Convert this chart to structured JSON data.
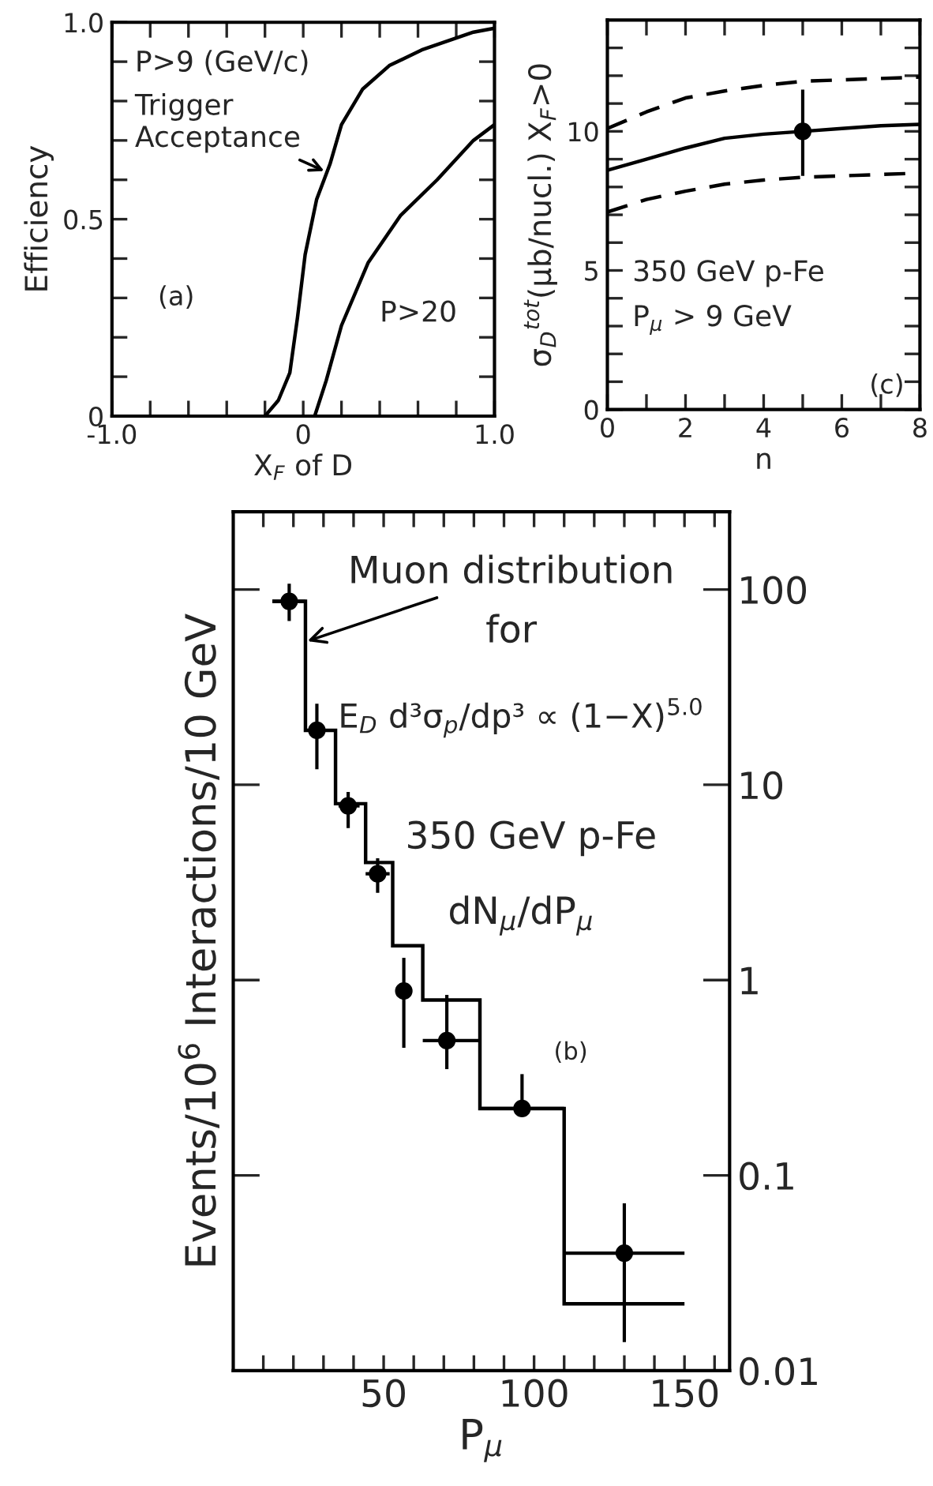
{
  "chart_data": [
    {
      "type": "line",
      "xlabel": "X$_{F}$ of D",
      "ylabel": "Efficiency",
      "xlim": [
        -1,
        1
      ],
      "ylim": [
        0,
        1
      ],
      "xticks": [
        {
          "value": -1,
          "label": "-1.0"
        },
        {
          "value": -0.8,
          "label": null
        },
        {
          "value": -0.6,
          "label": null
        },
        {
          "value": -0.4,
          "label": null
        },
        {
          "value": -0.2,
          "label": null
        },
        0,
        {
          "value": 0.2,
          "label": null
        },
        {
          "value": 0.4,
          "label": null
        },
        {
          "value": 0.6,
          "label": null
        },
        {
          "value": 0.8,
          "label": null
        },
        {
          "value": 1,
          "label": "1.0"
        }
      ],
      "yticks": [
        0,
        {
          "value": 0.1,
          "label": null
        },
        {
          "value": 0.2,
          "label": null
        },
        {
          "value": 0.3,
          "label": null
        },
        {
          "value": 0.4,
          "label": null
        },
        {
          "value": 0.5,
          "label": "0.5"
        },
        {
          "value": 0.6,
          "label": null
        },
        {
          "value": 0.7,
          "label": null
        },
        {
          "value": 0.8,
          "label": null
        },
        {
          "value": 0.9,
          "label": null
        },
        {
          "value": 1,
          "label": "1.0"
        }
      ],
      "series": [
        {
          "color": "#000000",
          "x": [
            -0.2,
            -0.13,
            -0.07,
            -0.03,
            0.01,
            0.07,
            0.14,
            0.2,
            0.31,
            0.45,
            0.62,
            0.89,
            1.0
          ],
          "values": [
            0,
            0.04,
            0.11,
            0.25,
            0.41,
            0.55,
            0.64,
            0.74,
            0.83,
            0.89,
            0.93,
            0.975,
            0.985
          ]
        },
        {
          "color": "#000000",
          "x": [
            0.06,
            0.12,
            0.2,
            0.34,
            0.51,
            0.7,
            0.89,
            1.0
          ],
          "values": [
            0,
            0.09,
            0.23,
            0.39,
            0.51,
            0.6,
            0.7,
            0.74
          ]
        }
      ],
      "annotations": [
        "P>9 (GeV/c)",
        {
          "text": "Trigger\nAcceptance",
          "x": 0.12,
          "y": 0.62
        },
        "(a)",
        "P>20"
      ]
    },
    {
      "type": "line",
      "xlabel": "n",
      "ylabel": "σ$_{D}$$^{tot}$(μb/nucl.) X$_{F}$>0",
      "xlim": [
        0,
        8
      ],
      "ylim": [
        0,
        14
      ],
      "xticks": [
        0,
        {
          "value": 1,
          "label": null
        },
        2,
        {
          "value": 3,
          "label": null
        },
        4,
        {
          "value": 5,
          "label": null
        },
        6,
        {
          "value": 7,
          "label": null
        },
        8
      ],
      "yticks": [
        0,
        {
          "value": 1,
          "label": null
        },
        {
          "value": 2,
          "label": null
        },
        {
          "value": 3,
          "label": null
        },
        {
          "value": 4,
          "label": null
        },
        5,
        {
          "value": 6,
          "label": null
        },
        {
          "value": 7,
          "label": null
        },
        {
          "value": 8,
          "label": null
        },
        {
          "value": 9,
          "label": null
        },
        10,
        {
          "value": 11,
          "label": null
        },
        {
          "value": 12,
          "label": null
        },
        {
          "value": 13,
          "label": null
        }
      ],
      "series": [
        {
          "type": "line",
          "line_style": "solid",
          "color": "#000000",
          "x": [
            0,
            1,
            2,
            3,
            4,
            5,
            6,
            7,
            8
          ],
          "values": [
            8.6,
            9.0,
            9.4,
            9.75,
            9.9,
            10.0,
            10.1,
            10.2,
            10.25
          ]
        },
        {
          "type": "line",
          "line_style": "dashed",
          "color": "#000000",
          "x": [
            0,
            1,
            2,
            3,
            4,
            5,
            6,
            7,
            8
          ],
          "values": [
            10.1,
            10.7,
            11.2,
            11.45,
            11.65,
            11.8,
            11.85,
            11.9,
            11.95
          ]
        },
        {
          "type": "line",
          "line_style": "dashed",
          "color": "#000000",
          "x": [
            0,
            1,
            2,
            3,
            4,
            5,
            6,
            7,
            8
          ],
          "values": [
            7.1,
            7.55,
            7.85,
            8.1,
            8.25,
            8.35,
            8.4,
            8.45,
            8.5
          ]
        },
        {
          "type": "scatter",
          "marker": "circle",
          "color": "#000000",
          "x": [
            5
          ],
          "values": [
            10.0
          ],
          "errors": [
            [
              8.4,
              11.5
            ]
          ]
        }
      ],
      "annotations": [
        "350 GeV p-Fe",
        "P$_{μ}$ > 9 GeV",
        "(c)"
      ]
    },
    {
      "type": "histogram",
      "xlabel": "P$_{μ}$",
      "ylabel": "Events/10$^{6}$ Interactions/10 GeV",
      "log": "y",
      "xlim": [
        0,
        165
      ],
      "ylim": [
        0.01,
        250
      ],
      "xticks": [
        {
          "value": 10,
          "label": null
        },
        {
          "value": 20,
          "label": null
        },
        {
          "value": 30,
          "label": null
        },
        {
          "value": 40,
          "label": null
        },
        50,
        {
          "value": 60,
          "label": null
        },
        {
          "value": 70,
          "label": null
        },
        {
          "value": 80,
          "label": null
        },
        {
          "value": 90,
          "label": null
        },
        100,
        {
          "value": 110,
          "label": null
        },
        {
          "value": 120,
          "label": null
        },
        {
          "value": 130,
          "label": null
        },
        {
          "value": 140,
          "label": null
        },
        150,
        {
          "value": 160,
          "label": null
        }
      ],
      "yticks": [
        0.01,
        0.1,
        1,
        10,
        100
      ],
      "series": [
        {
          "type": "histogram",
          "color": "#000000",
          "bins": [
            13,
            24,
            34,
            44,
            53,
            63,
            82,
            110,
            150
          ],
          "values": [
            87,
            19,
            8.0,
            4.0,
            1.5,
            0.79,
            0.22,
            0.022
          ]
        },
        {
          "type": "scatter",
          "marker": "circle",
          "color": "#000000",
          "x": [
            18.6,
            27.8,
            38.2,
            48,
            56.7,
            71,
            96,
            130
          ],
          "values": [
            87,
            19,
            7.8,
            3.5,
            0.88,
            0.49,
            0.22,
            0.04
          ],
          "errors": [
            [
              69,
              107
            ],
            [
              12,
              26
            ],
            [
              6.0,
              9.2
            ],
            [
              2.8,
              4.2
            ],
            [
              0.45,
              1.3
            ],
            [
              0.35,
              0.84
            ],
            [
              0.2,
              0.33
            ],
            [
              0.014,
              0.072
            ]
          ],
          "xerrors": [
            [
              13,
              24
            ],
            [
              24,
              34
            ],
            [
              35,
              42
            ],
            [
              44,
              52
            ],
            null,
            [
              63,
              82
            ],
            [
              82,
              110
            ],
            [
              110,
              150
            ]
          ]
        }
      ],
      "annotations": [
        {
          "text": "Muon distribution",
          "x": 24,
          "y": 54
        },
        "for",
        "E$_{D}$ d³σ$_{p}$/dp³ ∝ (1−X)$^{5.0}$",
        "350 GeV p-Fe",
        "dN$_{μ}$/dP$_{μ}$",
        "(b)"
      ]
    }
  ]
}
